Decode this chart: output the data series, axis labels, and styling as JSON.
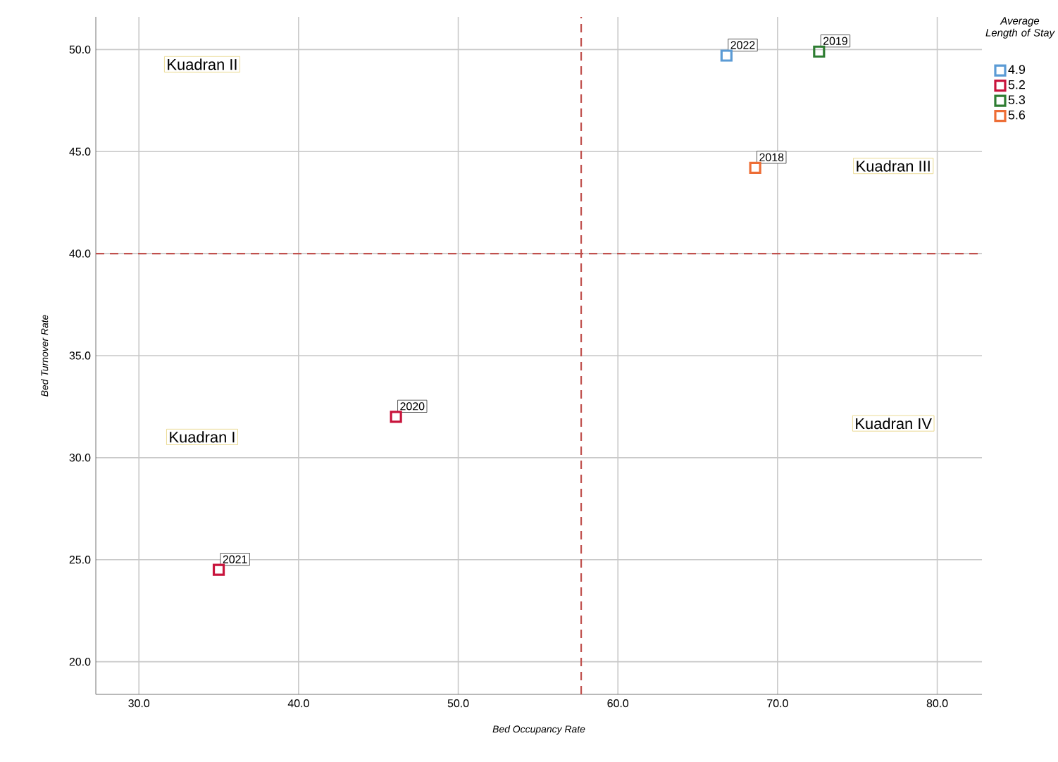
{
  "chart_data": {
    "type": "scatter",
    "xlabel": "Bed Occupancy Rate",
    "ylabel": "Bed Turnover Rate",
    "legend_title": "Average Length of Stay",
    "xlim": [
      27.3,
      82.8
    ],
    "ylim": [
      18.4,
      51.6
    ],
    "xticks": [
      {
        "value": 30,
        "label": "30.0"
      },
      {
        "value": 40,
        "label": "40.0"
      },
      {
        "value": 50,
        "label": "50.0"
      },
      {
        "value": 60,
        "label": "60.0"
      },
      {
        "value": 70,
        "label": "70.0"
      },
      {
        "value": 80,
        "label": "80.0"
      }
    ],
    "yticks": [
      {
        "value": 20,
        "label": "20.0"
      },
      {
        "value": 25,
        "label": "25.0"
      },
      {
        "value": 30,
        "label": "30.0"
      },
      {
        "value": 35,
        "label": "35.0"
      },
      {
        "value": 40,
        "label": "40.0"
      },
      {
        "value": 45,
        "label": "45.0"
      },
      {
        "value": 50,
        "label": "50.0"
      }
    ],
    "grid": true,
    "legend": "right",
    "marker": "square",
    "series": [
      {
        "name": "4.9",
        "color": "#5b9bd5",
        "x": [
          66.8
        ],
        "values": [
          49.7
        ]
      },
      {
        "name": "5.2",
        "color": "#c8143c",
        "x": [
          46.1,
          35.0
        ],
        "values": [
          32.0,
          24.5
        ]
      },
      {
        "name": "5.3",
        "color": "#2e7d32",
        "x": [
          72.6
        ],
        "values": [
          49.9
        ]
      },
      {
        "name": "5.6",
        "color": "#ed6d35",
        "x": [
          68.6
        ],
        "values": [
          44.2
        ]
      }
    ],
    "ref_lines": [
      {
        "axis": "x",
        "value": 57.7,
        "color": "#c0504d",
        "line_style": "dashed"
      },
      {
        "axis": "y",
        "value": 40,
        "color": "#c0504d",
        "line_style": "dashed"
      }
    ],
    "annotations": [
      "Kuadran II",
      "Kuadran III",
      "Kuadran IV",
      "Kuadran I",
      {
        "text": "2022",
        "x": 66.8,
        "y": 49.7
      },
      {
        "text": "2020",
        "x": 46.1,
        "y": 32.0
      },
      {
        "text": "2021",
        "x": 35.0,
        "y": 24.5
      },
      {
        "text": "2019",
        "x": 72.6,
        "y": 49.9
      },
      {
        "text": "2018",
        "x": 68.6,
        "y": 44.2
      }
    ]
  }
}
